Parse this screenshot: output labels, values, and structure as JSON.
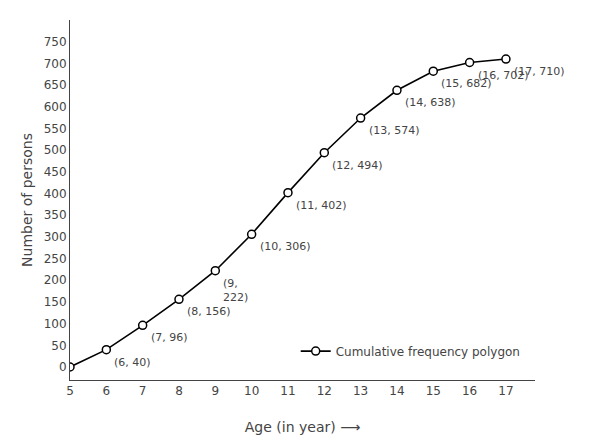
{
  "chart_data": {
    "type": "line",
    "x": [
      5,
      6,
      7,
      8,
      9,
      10,
      11,
      12,
      13,
      14,
      15,
      16,
      17
    ],
    "series": [
      {
        "name": "Cumulative frequency polygon",
        "color": "#000000",
        "values": [
          0,
          40,
          96,
          156,
          222,
          306,
          402,
          494,
          574,
          638,
          682,
          702,
          710
        ]
      }
    ],
    "annotations": [
      {
        "x": 6,
        "y": 40,
        "text": "(6, 40)"
      },
      {
        "x": 7,
        "y": 96,
        "text": "(7, 96)"
      },
      {
        "x": 8,
        "y": 156,
        "text": "(8, 156)"
      },
      {
        "x": 9,
        "y": 222,
        "text": "(9,\n222)"
      },
      {
        "x": 10,
        "y": 306,
        "text": "(10, 306)"
      },
      {
        "x": 11,
        "y": 402,
        "text": "(11, 402)"
      },
      {
        "x": 12,
        "y": 494,
        "text": "(12, 494)"
      },
      {
        "x": 13,
        "y": 574,
        "text": "(13, 574)"
      },
      {
        "x": 14,
        "y": 638,
        "text": "(14, 638)"
      },
      {
        "x": 15,
        "y": 682,
        "text": "(15, 682)"
      },
      {
        "x": 16,
        "y": 702,
        "text": "(16, 702)"
      },
      {
        "x": 17,
        "y": 710,
        "text": "(17, 710)"
      }
    ],
    "xlabel": "Age (in year) ⟶",
    "ylabel": "Number of persons",
    "xlim": [
      5,
      17.8
    ],
    "ylim": [
      -30,
      800
    ],
    "xticks": [
      5,
      6,
      7,
      8,
      9,
      10,
      11,
      12,
      13,
      14,
      15,
      16,
      17
    ],
    "yticks": [
      0,
      50,
      100,
      150,
      200,
      250,
      300,
      350,
      400,
      450,
      500,
      550,
      600,
      650,
      700,
      750
    ],
    "marker": "circle",
    "grid": false,
    "legend": "lower right"
  }
}
